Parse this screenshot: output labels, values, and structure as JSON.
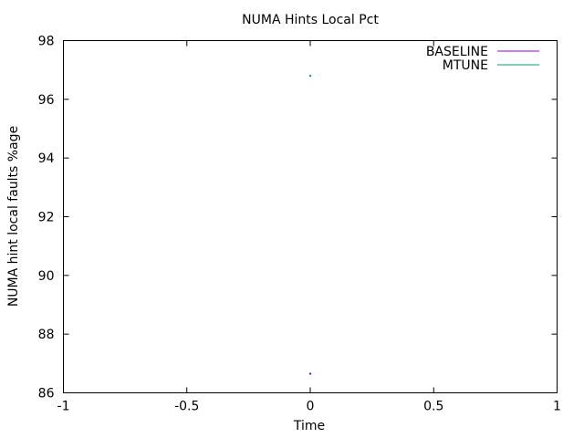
{
  "chart_data": {
    "type": "scatter",
    "title": "NUMA Hints Local Pct",
    "xlabel": "Time",
    "ylabel": "NUMA hint local faults %age",
    "xlim": [
      -1,
      1
    ],
    "ylim": [
      86,
      98
    ],
    "xticks": [
      "-1",
      "-0.5",
      "0",
      "0.5",
      "1"
    ],
    "xtick_values": [
      -1,
      -0.5,
      0,
      0.5,
      1
    ],
    "yticks": [
      "86",
      "88",
      "90",
      "92",
      "94",
      "96",
      "98"
    ],
    "ytick_values": [
      86,
      88,
      90,
      92,
      94,
      96,
      98
    ],
    "grid": false,
    "legend_position": "top-right",
    "series": [
      {
        "name": "BASELINE",
        "color": "#9400d3",
        "x": [
          0
        ],
        "y": [
          86.65
        ]
      },
      {
        "name": "MTUNE",
        "color": "#009e73",
        "x": [
          0
        ],
        "y": [
          96.8
        ]
      }
    ]
  }
}
